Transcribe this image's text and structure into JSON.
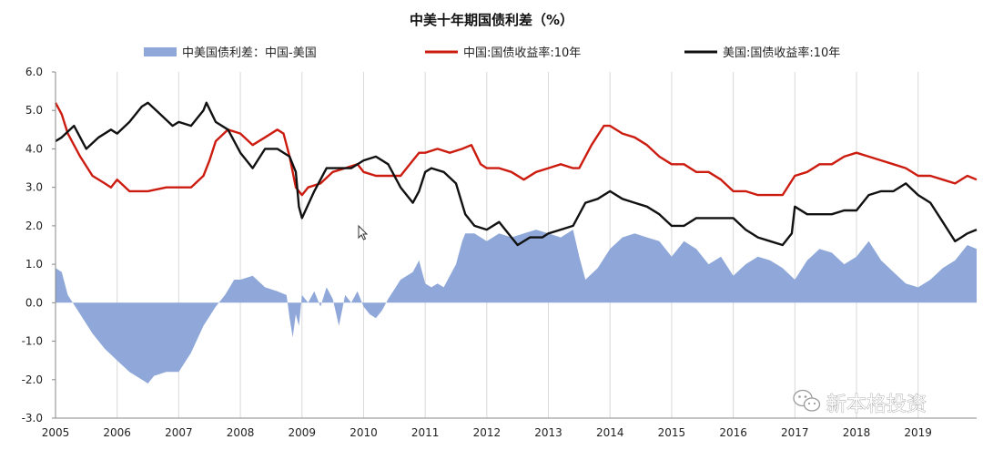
{
  "chart_data": {
    "type": "line",
    "title": "中美十年期国债利差（%）",
    "xlabel": "",
    "ylabel": "",
    "ylim": [
      -3.0,
      6.0
    ],
    "y_ticks": [
      "6.0",
      "5.0",
      "4.0",
      "3.0",
      "2.0",
      "1.0",
      "0.0",
      "-1.0",
      "-2.0",
      "-3.0"
    ],
    "x_ticks": [
      "2005",
      "2006",
      "2007",
      "2008",
      "2009",
      "2010",
      "2011",
      "2012",
      "2013",
      "2014",
      "2015",
      "2016",
      "2017",
      "2018",
      "2019"
    ],
    "xlim": [
      2005.0,
      2019.95
    ],
    "grid": "vertical",
    "legend_position": "top",
    "series": [
      {
        "name": "中美国债利差：中国-美国",
        "type": "area",
        "color": "#8fa8d9",
        "x": [
          2005.0,
          2005.1,
          2005.2,
          2005.4,
          2005.6,
          2005.8,
          2006.0,
          2006.2,
          2006.4,
          2006.5,
          2006.6,
          2006.8,
          2007.0,
          2007.2,
          2007.4,
          2007.6,
          2007.75,
          2007.9,
          2008.0,
          2008.2,
          2008.4,
          2008.6,
          2008.75,
          2008.8,
          2008.85,
          2008.9,
          2008.95,
          2009.0,
          2009.1,
          2009.2,
          2009.3,
          2009.4,
          2009.5,
          2009.6,
          2009.7,
          2009.8,
          2009.9,
          2010.0,
          2010.1,
          2010.2,
          2010.3,
          2010.4,
          2010.6,
          2010.8,
          2010.9,
          2011.0,
          2011.1,
          2011.2,
          2011.3,
          2011.5,
          2011.6,
          2011.65,
          2011.8,
          2012.0,
          2012.2,
          2012.4,
          2012.6,
          2012.8,
          2013.0,
          2013.2,
          2013.4,
          2013.5,
          2013.6,
          2013.8,
          2014.0,
          2014.2,
          2014.4,
          2014.6,
          2014.8,
          2015.0,
          2015.2,
          2015.4,
          2015.6,
          2015.8,
          2016.0,
          2016.2,
          2016.4,
          2016.6,
          2016.8,
          2017.0,
          2017.2,
          2017.4,
          2017.6,
          2017.8,
          2018.0,
          2018.2,
          2018.4,
          2018.6,
          2018.8,
          2019.0,
          2019.2,
          2019.4,
          2019.6,
          2019.8,
          2019.95
        ],
        "values": [
          0.9,
          0.8,
          0.2,
          -0.3,
          -0.8,
          -1.2,
          -1.5,
          -1.8,
          -2.0,
          -2.1,
          -1.9,
          -1.8,
          -1.8,
          -1.3,
          -0.6,
          -0.1,
          0.2,
          0.6,
          0.6,
          0.7,
          0.4,
          0.3,
          0.2,
          -0.4,
          -0.9,
          -0.3,
          -0.6,
          0.2,
          0.0,
          0.3,
          -0.1,
          0.4,
          0.1,
          -0.6,
          0.2,
          0.0,
          0.3,
          -0.1,
          -0.3,
          -0.4,
          -0.2,
          0.1,
          0.6,
          0.8,
          1.1,
          0.5,
          0.4,
          0.5,
          0.4,
          1.0,
          1.6,
          1.8,
          1.8,
          1.6,
          1.8,
          1.7,
          1.8,
          1.9,
          1.8,
          1.7,
          1.9,
          1.2,
          0.6,
          0.9,
          1.4,
          1.7,
          1.8,
          1.7,
          1.6,
          1.2,
          1.6,
          1.4,
          1.0,
          1.2,
          0.7,
          1.0,
          1.2,
          1.1,
          0.9,
          0.6,
          1.1,
          1.4,
          1.3,
          1.0,
          1.2,
          1.6,
          1.1,
          0.8,
          0.5,
          0.4,
          0.6,
          0.9,
          1.1,
          1.5,
          1.4
        ]
      },
      {
        "name": "中国:国债收益率:10年",
        "type": "line",
        "color": "#cc1c10",
        "x": [
          2005.0,
          2005.1,
          2005.2,
          2005.4,
          2005.6,
          2005.8,
          2005.9,
          2006.0,
          2006.2,
          2006.5,
          2006.8,
          2007.0,
          2007.2,
          2007.4,
          2007.5,
          2007.6,
          2007.8,
          2008.0,
          2008.2,
          2008.4,
          2008.6,
          2008.7,
          2008.8,
          2008.9,
          2009.0,
          2009.1,
          2009.3,
          2009.5,
          2009.7,
          2009.9,
          2010.0,
          2010.2,
          2010.4,
          2010.6,
          2010.8,
          2010.9,
          2011.0,
          2011.2,
          2011.4,
          2011.6,
          2011.75,
          2011.9,
          2012.0,
          2012.2,
          2012.4,
          2012.6,
          2012.8,
          2013.0,
          2013.2,
          2013.4,
          2013.5,
          2013.7,
          2013.9,
          2014.0,
          2014.2,
          2014.4,
          2014.6,
          2014.8,
          2015.0,
          2015.2,
          2015.4,
          2015.6,
          2015.8,
          2016.0,
          2016.2,
          2016.4,
          2016.6,
          2016.8,
          2017.0,
          2017.2,
          2017.4,
          2017.6,
          2017.8,
          2018.0,
          2018.2,
          2018.4,
          2018.6,
          2018.8,
          2019.0,
          2019.2,
          2019.4,
          2019.6,
          2019.8,
          2019.95
        ],
        "values": [
          5.2,
          4.9,
          4.4,
          3.8,
          3.3,
          3.1,
          3.0,
          3.2,
          2.9,
          2.9,
          3.0,
          3.0,
          3.0,
          3.3,
          3.7,
          4.2,
          4.5,
          4.4,
          4.1,
          4.3,
          4.5,
          4.4,
          3.8,
          3.0,
          2.8,
          3.0,
          3.1,
          3.4,
          3.5,
          3.6,
          3.4,
          3.3,
          3.3,
          3.3,
          3.7,
          3.9,
          3.9,
          4.0,
          3.9,
          4.0,
          4.1,
          3.6,
          3.5,
          3.5,
          3.4,
          3.2,
          3.4,
          3.5,
          3.6,
          3.5,
          3.5,
          4.1,
          4.6,
          4.6,
          4.4,
          4.3,
          4.1,
          3.8,
          3.6,
          3.6,
          3.4,
          3.4,
          3.2,
          2.9,
          2.9,
          2.8,
          2.8,
          2.8,
          3.3,
          3.4,
          3.6,
          3.6,
          3.8,
          3.9,
          3.8,
          3.7,
          3.6,
          3.5,
          3.3,
          3.3,
          3.2,
          3.1,
          3.3,
          3.2
        ]
      },
      {
        "name": "美国:国债收益率:10年",
        "type": "line",
        "color": "#111111",
        "x": [
          2005.0,
          2005.1,
          2005.3,
          2005.5,
          2005.7,
          2005.9,
          2006.0,
          2006.2,
          2006.4,
          2006.5,
          2006.7,
          2006.9,
          2007.0,
          2007.2,
          2007.4,
          2007.45,
          2007.6,
          2007.8,
          2008.0,
          2008.2,
          2008.4,
          2008.6,
          2008.8,
          2008.9,
          2008.95,
          2009.0,
          2009.2,
          2009.4,
          2009.6,
          2009.8,
          2010.0,
          2010.2,
          2010.4,
          2010.6,
          2010.8,
          2010.9,
          2011.0,
          2011.1,
          2011.3,
          2011.5,
          2011.65,
          2011.8,
          2012.0,
          2012.2,
          2012.4,
          2012.5,
          2012.7,
          2012.9,
          2013.0,
          2013.2,
          2013.4,
          2013.6,
          2013.8,
          2014.0,
          2014.2,
          2014.4,
          2014.6,
          2014.8,
          2015.0,
          2015.2,
          2015.4,
          2015.6,
          2015.8,
          2016.0,
          2016.2,
          2016.4,
          2016.6,
          2016.8,
          2016.95,
          2017.0,
          2017.2,
          2017.4,
          2017.6,
          2017.8,
          2018.0,
          2018.2,
          2018.4,
          2018.6,
          2018.8,
          2019.0,
          2019.2,
          2019.4,
          2019.6,
          2019.7,
          2019.8,
          2019.95
        ],
        "values": [
          4.2,
          4.3,
          4.6,
          4.0,
          4.3,
          4.5,
          4.4,
          4.7,
          5.1,
          5.2,
          4.9,
          4.6,
          4.7,
          4.6,
          5.0,
          5.2,
          4.7,
          4.5,
          3.9,
          3.5,
          4.0,
          4.0,
          3.8,
          3.4,
          2.5,
          2.2,
          2.9,
          3.5,
          3.5,
          3.5,
          3.7,
          3.8,
          3.6,
          3.0,
          2.6,
          2.9,
          3.4,
          3.5,
          3.4,
          3.1,
          2.3,
          2.0,
          1.9,
          2.1,
          1.7,
          1.5,
          1.7,
          1.7,
          1.8,
          1.9,
          2.0,
          2.6,
          2.7,
          2.9,
          2.7,
          2.6,
          2.5,
          2.3,
          2.0,
          2.0,
          2.2,
          2.2,
          2.2,
          2.2,
          1.9,
          1.7,
          1.6,
          1.5,
          1.8,
          2.5,
          2.3,
          2.3,
          2.3,
          2.4,
          2.4,
          2.8,
          2.9,
          2.9,
          3.1,
          2.8,
          2.6,
          2.1,
          1.6,
          1.7,
          1.8,
          1.9
        ]
      }
    ]
  },
  "watermark": {
    "text": "新本格投资",
    "icon": "wechat-icon"
  },
  "cursor": {
    "icon": "mouse-pointer-icon"
  }
}
